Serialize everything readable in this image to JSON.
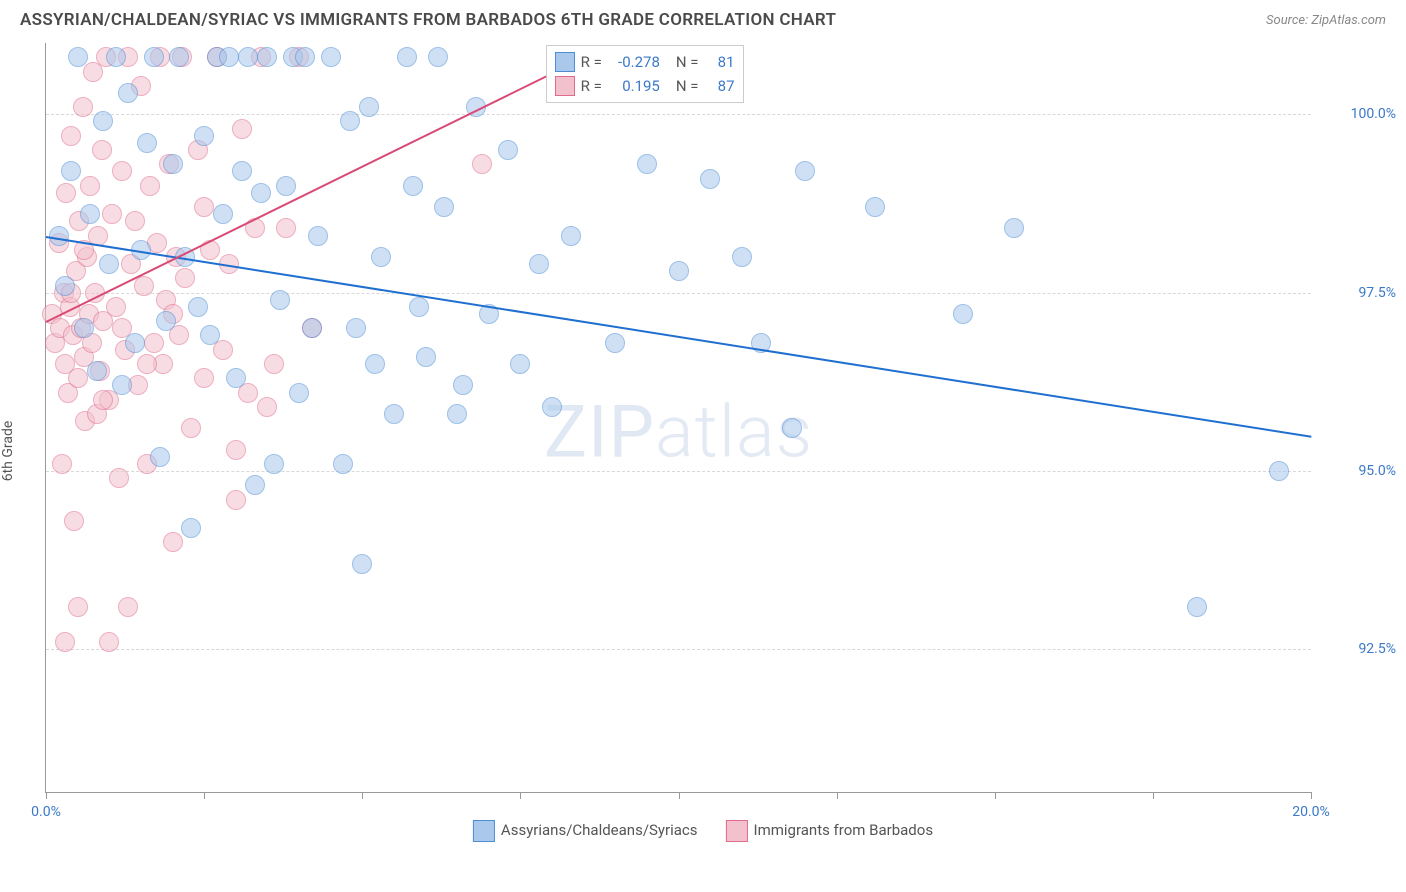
{
  "title": "ASSYRIAN/CHALDEAN/SYRIAC VS IMMIGRANTS FROM BARBADOS 6TH GRADE CORRELATION CHART",
  "source": "Source: ZipAtlas.com",
  "ylabel": "6th Grade",
  "watermark_a": "ZIP",
  "watermark_b": "atlas",
  "chart": {
    "type": "scatter",
    "background_color": "#ffffff",
    "grid_color": "#d8d8d8",
    "xlim": [
      0.0,
      20.0
    ],
    "ylim": [
      90.5,
      101.0
    ],
    "xticks": [
      0.0,
      2.5,
      5.0,
      7.5,
      10.0,
      12.5,
      15.0,
      17.5,
      20.0
    ],
    "xtick_labels_shown": {
      "0.0": "0.0%",
      "20.0": "20.0%"
    },
    "yticks": [
      92.5,
      95.0,
      97.5,
      100.0
    ],
    "ytick_labels": [
      "92.5%",
      "95.0%",
      "97.5%",
      "100.0%"
    ],
    "marker_radius": 10,
    "marker_opacity": 0.55,
    "series": [
      {
        "name": "Assyrians/Chaldeans/Syriacs",
        "color_fill": "#a9c8ec",
        "color_stroke": "#4d8dd6",
        "R": "-0.278",
        "N": "81",
        "trend": {
          "color": "#1f6fd0",
          "x1": 0.0,
          "y1": 98.3,
          "x2": 20.0,
          "y2": 95.5
        },
        "points": [
          [
            0.2,
            98.3
          ],
          [
            0.3,
            97.6
          ],
          [
            0.4,
            99.2
          ],
          [
            0.5,
            100.8
          ],
          [
            0.7,
            98.6
          ],
          [
            0.8,
            96.4
          ],
          [
            0.9,
            99.9
          ],
          [
            1.0,
            97.9
          ],
          [
            1.1,
            100.8
          ],
          [
            1.2,
            96.2
          ],
          [
            1.3,
            100.3
          ],
          [
            1.5,
            98.1
          ],
          [
            1.6,
            99.6
          ],
          [
            1.7,
            100.8
          ],
          [
            1.8,
            95.2
          ],
          [
            1.9,
            97.1
          ],
          [
            2.0,
            99.3
          ],
          [
            2.1,
            100.8
          ],
          [
            2.2,
            98.0
          ],
          [
            2.3,
            94.2
          ],
          [
            2.5,
            99.7
          ],
          [
            2.6,
            96.9
          ],
          [
            2.7,
            100.8
          ],
          [
            2.8,
            98.6
          ],
          [
            2.9,
            100.8
          ],
          [
            3.0,
            96.3
          ],
          [
            3.1,
            99.2
          ],
          [
            3.2,
            100.8
          ],
          [
            3.3,
            94.8
          ],
          [
            3.4,
            98.9
          ],
          [
            3.5,
            100.8
          ],
          [
            3.7,
            97.4
          ],
          [
            3.8,
            99.0
          ],
          [
            3.9,
            100.8
          ],
          [
            4.0,
            96.1
          ],
          [
            4.1,
            100.8
          ],
          [
            4.3,
            98.3
          ],
          [
            4.5,
            100.8
          ],
          [
            4.7,
            95.1
          ],
          [
            4.8,
            99.9
          ],
          [
            5.0,
            93.7
          ],
          [
            5.1,
            100.1
          ],
          [
            5.2,
            96.5
          ],
          [
            5.3,
            98.0
          ],
          [
            5.5,
            95.8
          ],
          [
            5.7,
            100.8
          ],
          [
            5.9,
            97.3
          ],
          [
            6.0,
            96.6
          ],
          [
            6.2,
            100.8
          ],
          [
            6.3,
            98.7
          ],
          [
            6.6,
            96.2
          ],
          [
            6.8,
            100.1
          ],
          [
            7.0,
            97.2
          ],
          [
            7.3,
            99.5
          ],
          [
            7.5,
            96.5
          ],
          [
            7.8,
            97.9
          ],
          [
            8.0,
            95.9
          ],
          [
            8.3,
            98.3
          ],
          [
            8.7,
            100.8
          ],
          [
            9.0,
            96.8
          ],
          [
            9.5,
            99.3
          ],
          [
            10.0,
            97.8
          ],
          [
            10.2,
            100.8
          ],
          [
            10.5,
            99.1
          ],
          [
            11.0,
            98.0
          ],
          [
            11.3,
            96.8
          ],
          [
            11.8,
            95.6
          ],
          [
            12.0,
            99.2
          ],
          [
            13.1,
            98.7
          ],
          [
            14.5,
            97.2
          ],
          [
            15.3,
            98.4
          ],
          [
            18.2,
            93.1
          ],
          [
            19.5,
            95.0
          ],
          [
            0.6,
            97.0
          ],
          [
            1.4,
            96.8
          ],
          [
            2.4,
            97.3
          ],
          [
            3.6,
            95.1
          ],
          [
            4.2,
            97.0
          ],
          [
            4.9,
            97.0
          ],
          [
            5.8,
            99.0
          ],
          [
            6.5,
            95.8
          ]
        ]
      },
      {
        "name": "Immigrants from Barbados",
        "color_fill": "#f3c1cd",
        "color_stroke": "#e06c8b",
        "R": "0.195",
        "N": "87",
        "trend": {
          "color": "#d94a74",
          "x1": 0.0,
          "y1": 97.1,
          "x2": 8.5,
          "y2": 100.8
        },
        "points": [
          [
            0.1,
            97.2
          ],
          [
            0.15,
            96.8
          ],
          [
            0.2,
            98.2
          ],
          [
            0.22,
            97.0
          ],
          [
            0.25,
            95.1
          ],
          [
            0.28,
            97.5
          ],
          [
            0.3,
            96.5
          ],
          [
            0.32,
            98.9
          ],
          [
            0.35,
            96.1
          ],
          [
            0.38,
            97.3
          ],
          [
            0.4,
            99.7
          ],
          [
            0.42,
            96.9
          ],
          [
            0.45,
            94.3
          ],
          [
            0.48,
            97.8
          ],
          [
            0.5,
            96.3
          ],
          [
            0.52,
            98.5
          ],
          [
            0.55,
            97.0
          ],
          [
            0.58,
            100.1
          ],
          [
            0.6,
            96.6
          ],
          [
            0.62,
            95.7
          ],
          [
            0.65,
            98.0
          ],
          [
            0.68,
            97.2
          ],
          [
            0.7,
            99.0
          ],
          [
            0.72,
            96.8
          ],
          [
            0.75,
            100.6
          ],
          [
            0.78,
            97.5
          ],
          [
            0.8,
            95.8
          ],
          [
            0.82,
            98.3
          ],
          [
            0.85,
            96.4
          ],
          [
            0.88,
            99.5
          ],
          [
            0.9,
            97.1
          ],
          [
            0.95,
            100.8
          ],
          [
            1.0,
            96.0
          ],
          [
            1.05,
            98.6
          ],
          [
            1.1,
            97.3
          ],
          [
            1.15,
            94.9
          ],
          [
            1.2,
            99.2
          ],
          [
            1.25,
            96.7
          ],
          [
            1.3,
            100.8
          ],
          [
            1.35,
            97.9
          ],
          [
            1.4,
            98.5
          ],
          [
            1.45,
            96.2
          ],
          [
            1.5,
            100.4
          ],
          [
            1.55,
            97.6
          ],
          [
            1.6,
            95.1
          ],
          [
            1.65,
            99.0
          ],
          [
            1.7,
            96.8
          ],
          [
            1.75,
            98.2
          ],
          [
            1.8,
            100.8
          ],
          [
            1.85,
            96.5
          ],
          [
            1.9,
            97.4
          ],
          [
            1.95,
            99.3
          ],
          [
            2.0,
            94.0
          ],
          [
            2.05,
            98.0
          ],
          [
            2.1,
            96.9
          ],
          [
            2.15,
            100.8
          ],
          [
            2.2,
            97.7
          ],
          [
            2.3,
            95.6
          ],
          [
            2.4,
            99.5
          ],
          [
            2.5,
            96.3
          ],
          [
            2.6,
            98.1
          ],
          [
            2.7,
            100.8
          ],
          [
            2.8,
            96.7
          ],
          [
            2.9,
            97.9
          ],
          [
            3.0,
            94.6
          ],
          [
            3.1,
            99.8
          ],
          [
            3.2,
            96.1
          ],
          [
            3.3,
            98.4
          ],
          [
            3.4,
            100.8
          ],
          [
            3.5,
            95.9
          ],
          [
            3.6,
            96.5
          ],
          [
            3.8,
            98.4
          ],
          [
            4.0,
            100.8
          ],
          [
            4.2,
            97.0
          ],
          [
            0.3,
            92.6
          ],
          [
            0.5,
            93.1
          ],
          [
            1.0,
            92.6
          ],
          [
            1.3,
            93.1
          ],
          [
            0.4,
            97.5
          ],
          [
            0.6,
            98.1
          ],
          [
            0.9,
            96.0
          ],
          [
            1.2,
            97.0
          ],
          [
            1.6,
            96.5
          ],
          [
            2.0,
            97.2
          ],
          [
            2.5,
            98.7
          ],
          [
            3.0,
            95.3
          ],
          [
            6.9,
            99.3
          ]
        ]
      }
    ]
  },
  "legend_bottom": [
    {
      "label": "Assyrians/Chaldeans/Syriacs",
      "fill": "#a9c8ec",
      "stroke": "#4d8dd6"
    },
    {
      "label": "Immigrants from Barbados",
      "fill": "#f3c1cd",
      "stroke": "#e06c8b"
    }
  ],
  "stat_box": {
    "rows": [
      {
        "fill": "#a9c8ec",
        "stroke": "#4d8dd6",
        "r_label": "R =",
        "r_val": "-0.278",
        "n_label": "N =",
        "n_val": "81"
      },
      {
        "fill": "#f3c1cd",
        "stroke": "#e06c8b",
        "r_label": "R =",
        "r_val": "0.195",
        "n_label": "N =",
        "n_val": "87"
      }
    ]
  }
}
